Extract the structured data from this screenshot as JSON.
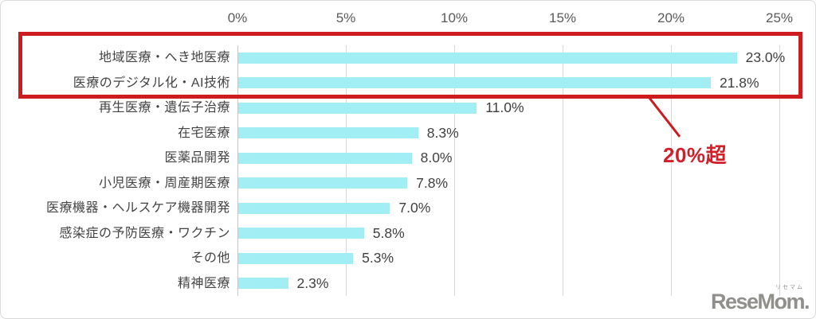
{
  "chart_data": {
    "type": "bar",
    "orientation": "horizontal",
    "title": "",
    "categories": [
      "地域医療・へき地医療",
      "医療のデジタル化・AI技術",
      "再生医療・遺伝子治療",
      "在宅医療",
      "医薬品開発",
      "小児医療・周産期医療",
      "医療機器・ヘルスケア機器開発",
      "感染症の予防医療・ワクチン",
      "その他",
      "精神医療"
    ],
    "values": [
      23.0,
      21.8,
      11.0,
      8.3,
      8.0,
      7.8,
      7.0,
      5.8,
      5.3,
      2.3
    ],
    "value_labels": [
      "23.0%",
      "21.8%",
      "11.0%",
      "8.3%",
      "8.0%",
      "7.8%",
      "7.0%",
      "5.8%",
      "5.3%",
      "2.3%"
    ],
    "x_ticks": [
      "0%",
      "5%",
      "10%",
      "15%",
      "20%",
      "25%"
    ],
    "xlim": [
      0,
      25
    ],
    "grid": true,
    "legend": false,
    "bar_color": "#a1eef4",
    "gridline_color": "#d9d9d9",
    "text_color": "#404040"
  },
  "annotation": {
    "text": "20%超",
    "color": "#ce1b20",
    "highlighted_categories": [
      "地域医療・へき地医療",
      "医療のデジタル化・AI技術"
    ]
  },
  "logo": {
    "text": "ReseMom.",
    "ruby": "リセマム"
  }
}
